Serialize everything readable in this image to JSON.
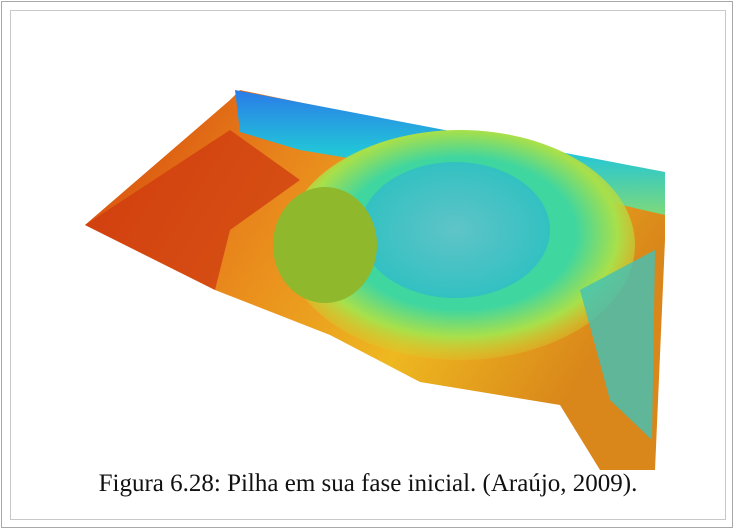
{
  "figure": {
    "caption": "Figura 6.28: Pilha em sua fase inicial. (Araújo, 2009)."
  }
}
